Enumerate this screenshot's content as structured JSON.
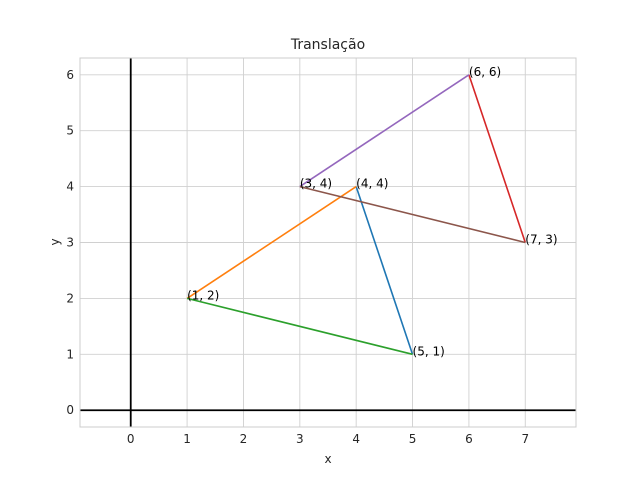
{
  "chart_data": {
    "type": "line",
    "title": "Translação",
    "xlabel": "x",
    "ylabel": "y",
    "xlim": [
      -0.9,
      7.9
    ],
    "ylim": [
      -0.3,
      6.3
    ],
    "x_ticks": [
      0,
      1,
      2,
      3,
      4,
      5,
      6,
      7
    ],
    "y_ticks": [
      0,
      1,
      2,
      3,
      4,
      5,
      6
    ],
    "grid": true,
    "zero_axes": true,
    "series": [
      {
        "color": "#1f77b4",
        "x": [
          4,
          5
        ],
        "y": [
          4,
          1
        ]
      },
      {
        "color": "#ff7f0e",
        "x": [
          1,
          4
        ],
        "y": [
          2,
          4
        ]
      },
      {
        "color": "#2ca02c",
        "x": [
          1,
          5
        ],
        "y": [
          2,
          1
        ]
      },
      {
        "color": "#d62728",
        "x": [
          6,
          7
        ],
        "y": [
          6,
          3
        ]
      },
      {
        "color": "#9467bd",
        "x": [
          3,
          6
        ],
        "y": [
          4,
          6
        ]
      },
      {
        "color": "#8c564b",
        "x": [
          3,
          7
        ],
        "y": [
          4,
          3
        ]
      }
    ],
    "annotations": [
      {
        "text": "(4, 4)",
        "x": 4,
        "y": 4
      },
      {
        "text": "(5, 1)",
        "x": 5,
        "y": 1
      },
      {
        "text": "(1, 2)",
        "x": 1,
        "y": 2
      },
      {
        "text": "(6, 6)",
        "x": 6,
        "y": 6
      },
      {
        "text": "(7, 3)",
        "x": 7,
        "y": 3
      },
      {
        "text": "(3, 4)",
        "x": 3,
        "y": 4
      }
    ]
  }
}
